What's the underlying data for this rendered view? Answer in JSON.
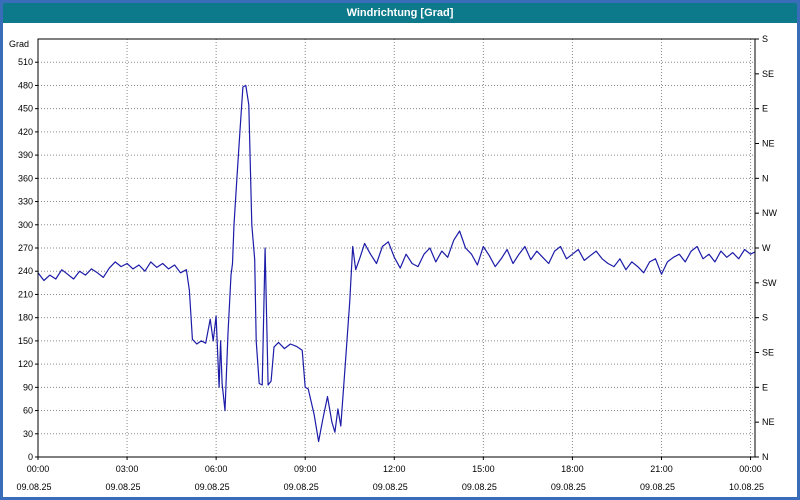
{
  "window_title": "Windrichtung [Grad]",
  "colors": {
    "titlebar_bg": "#0d7a8c",
    "titlebar_text": "#ffffff",
    "frame_border": "#3a6db9",
    "plot_bg": "#ffffff",
    "line": "#1c1ca8",
    "grid": "#8a8a8a",
    "axis": "#000000"
  },
  "chart_data": {
    "type": "line",
    "title": "Windrichtung [Grad]",
    "ylabel": "Grad",
    "ylim": [
      0,
      540
    ],
    "y_ticks": [
      0,
      30,
      60,
      90,
      120,
      150,
      180,
      210,
      240,
      270,
      300,
      330,
      360,
      390,
      420,
      450,
      480,
      510
    ],
    "right_axis_labels": [
      {
        "deg": 540,
        "label": "S"
      },
      {
        "deg": 495,
        "label": "SE"
      },
      {
        "deg": 450,
        "label": "E"
      },
      {
        "deg": 405,
        "label": "NE"
      },
      {
        "deg": 360,
        "label": "N"
      },
      {
        "deg": 315,
        "label": "NW"
      },
      {
        "deg": 270,
        "label": "W"
      },
      {
        "deg": 225,
        "label": "SW"
      },
      {
        "deg": 180,
        "label": "S"
      },
      {
        "deg": 135,
        "label": "SE"
      },
      {
        "deg": 90,
        "label": "E"
      },
      {
        "deg": 45,
        "label": "NE"
      },
      {
        "deg": 0,
        "label": "N"
      }
    ],
    "x_range_hours": [
      0,
      24.15
    ],
    "x_ticks": [
      {
        "hour": 0,
        "time": "00:00",
        "date": "09.08.25"
      },
      {
        "hour": 3,
        "time": "03:00",
        "date": "09.08.25"
      },
      {
        "hour": 6,
        "time": "06:00",
        "date": "09.08.25"
      },
      {
        "hour": 9,
        "time": "09:00",
        "date": "09.08.25"
      },
      {
        "hour": 12,
        "time": "12:00",
        "date": "09.08.25"
      },
      {
        "hour": 15,
        "time": "15:00",
        "date": "09.08.25"
      },
      {
        "hour": 18,
        "time": "18:00",
        "date": "09.08.25"
      },
      {
        "hour": 21,
        "time": "21:00",
        "date": "09.08.25"
      },
      {
        "hour": 24,
        "time": "00:00",
        "date": "10.08.25"
      }
    ],
    "grid": true,
    "legend": "none",
    "series": [
      {
        "name": "Windrichtung",
        "points": [
          [
            0.0,
            238
          ],
          [
            0.2,
            228
          ],
          [
            0.4,
            235
          ],
          [
            0.6,
            230
          ],
          [
            0.8,
            242
          ],
          [
            1.0,
            236
          ],
          [
            1.2,
            230
          ],
          [
            1.4,
            240
          ],
          [
            1.6,
            235
          ],
          [
            1.8,
            243
          ],
          [
            2.0,
            238
          ],
          [
            2.2,
            232
          ],
          [
            2.4,
            244
          ],
          [
            2.6,
            252
          ],
          [
            2.8,
            246
          ],
          [
            3.0,
            250
          ],
          [
            3.2,
            243
          ],
          [
            3.4,
            248
          ],
          [
            3.6,
            240
          ],
          [
            3.8,
            252
          ],
          [
            4.0,
            245
          ],
          [
            4.2,
            250
          ],
          [
            4.4,
            243
          ],
          [
            4.6,
            248
          ],
          [
            4.8,
            238
          ],
          [
            5.0,
            242
          ],
          [
            5.1,
            215
          ],
          [
            5.2,
            152
          ],
          [
            5.35,
            146
          ],
          [
            5.5,
            150
          ],
          [
            5.65,
            147
          ],
          [
            5.8,
            178
          ],
          [
            5.9,
            150
          ],
          [
            6.0,
            182
          ],
          [
            6.1,
            90
          ],
          [
            6.15,
            150
          ],
          [
            6.2,
            95
          ],
          [
            6.3,
            60
          ],
          [
            6.4,
            160
          ],
          [
            6.5,
            235
          ],
          [
            6.55,
            250
          ],
          [
            6.6,
            300
          ],
          [
            6.7,
            360
          ],
          [
            6.8,
            420
          ],
          [
            6.9,
            478
          ],
          [
            7.0,
            480
          ],
          [
            7.1,
            455
          ],
          [
            7.2,
            300
          ],
          [
            7.3,
            255
          ],
          [
            7.35,
            150
          ],
          [
            7.45,
            95
          ],
          [
            7.55,
            93
          ],
          [
            7.65,
            270
          ],
          [
            7.75,
            93
          ],
          [
            7.85,
            98
          ],
          [
            7.95,
            142
          ],
          [
            8.1,
            148
          ],
          [
            8.3,
            140
          ],
          [
            8.5,
            146
          ],
          [
            8.7,
            143
          ],
          [
            8.9,
            138
          ],
          [
            9.0,
            90
          ],
          [
            9.1,
            88
          ],
          [
            9.3,
            55
          ],
          [
            9.45,
            20
          ],
          [
            9.6,
            50
          ],
          [
            9.75,
            78
          ],
          [
            9.9,
            45
          ],
          [
            10.0,
            32
          ],
          [
            10.1,
            62
          ],
          [
            10.2,
            40
          ],
          [
            10.35,
            120
          ],
          [
            10.5,
            200
          ],
          [
            10.6,
            272
          ],
          [
            10.7,
            242
          ],
          [
            10.85,
            258
          ],
          [
            11.0,
            276
          ],
          [
            11.2,
            262
          ],
          [
            11.4,
            250
          ],
          [
            11.6,
            272
          ],
          [
            11.8,
            278
          ],
          [
            12.0,
            258
          ],
          [
            12.2,
            244
          ],
          [
            12.4,
            262
          ],
          [
            12.6,
            250
          ],
          [
            12.8,
            246
          ],
          [
            13.0,
            262
          ],
          [
            13.2,
            270
          ],
          [
            13.4,
            252
          ],
          [
            13.6,
            266
          ],
          [
            13.8,
            258
          ],
          [
            14.0,
            280
          ],
          [
            14.2,
            292
          ],
          [
            14.4,
            270
          ],
          [
            14.6,
            262
          ],
          [
            14.8,
            248
          ],
          [
            15.0,
            272
          ],
          [
            15.2,
            260
          ],
          [
            15.4,
            246
          ],
          [
            15.6,
            256
          ],
          [
            15.8,
            268
          ],
          [
            16.0,
            250
          ],
          [
            16.2,
            262
          ],
          [
            16.4,
            272
          ],
          [
            16.6,
            255
          ],
          [
            16.8,
            266
          ],
          [
            17.0,
            258
          ],
          [
            17.2,
            250
          ],
          [
            17.4,
            266
          ],
          [
            17.6,
            272
          ],
          [
            17.8,
            256
          ],
          [
            18.0,
            262
          ],
          [
            18.2,
            268
          ],
          [
            18.4,
            254
          ],
          [
            18.6,
            260
          ],
          [
            18.8,
            266
          ],
          [
            19.0,
            256
          ],
          [
            19.2,
            250
          ],
          [
            19.4,
            246
          ],
          [
            19.6,
            256
          ],
          [
            19.8,
            242
          ],
          [
            20.0,
            252
          ],
          [
            20.2,
            246
          ],
          [
            20.4,
            238
          ],
          [
            20.6,
            252
          ],
          [
            20.8,
            256
          ],
          [
            21.0,
            236
          ],
          [
            21.2,
            252
          ],
          [
            21.4,
            258
          ],
          [
            21.6,
            262
          ],
          [
            21.8,
            252
          ],
          [
            22.0,
            266
          ],
          [
            22.2,
            272
          ],
          [
            22.4,
            256
          ],
          [
            22.6,
            262
          ],
          [
            22.8,
            252
          ],
          [
            23.0,
            266
          ],
          [
            23.2,
            258
          ],
          [
            23.4,
            264
          ],
          [
            23.6,
            256
          ],
          [
            23.8,
            268
          ],
          [
            24.0,
            262
          ],
          [
            24.15,
            265
          ]
        ]
      }
    ]
  }
}
